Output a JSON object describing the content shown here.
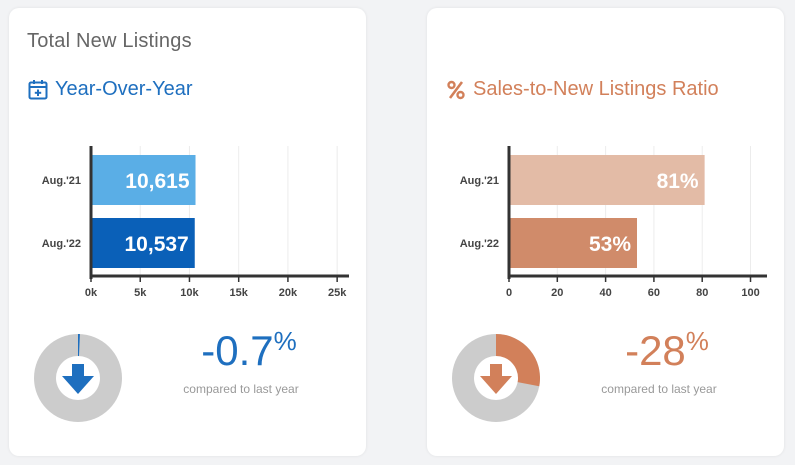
{
  "left_card": {
    "title": "Total New Listings",
    "subtitle": "Year-Over-Year",
    "subtitle_icon": "calendar-plus-icon",
    "color": "#1e6fbf",
    "change_value": "-0.7",
    "change_unit": "%",
    "compare_text": "compared to last year",
    "donut_fraction": 0.007,
    "donut_direction": "down"
  },
  "right_card": {
    "title": "",
    "subtitle": "Sales-to-New Listings Ratio",
    "subtitle_icon": "percent-icon",
    "color": "#d2805a",
    "change_value": "-28",
    "change_unit": "%",
    "compare_text": "compared to last year",
    "donut_fraction": 0.28,
    "donut_direction": "down"
  },
  "chart_data": [
    {
      "type": "bar",
      "orientation": "horizontal",
      "categories": [
        "Aug.'21",
        "Aug.'22"
      ],
      "values": [
        10615,
        10537
      ],
      "value_labels": [
        "10,615",
        "10,537"
      ],
      "colors": [
        "#5aaee6",
        "#0a60b8"
      ],
      "xlim": [
        0,
        26000
      ],
      "xticks": [
        0,
        5000,
        10000,
        15000,
        20000,
        25000
      ],
      "xtick_labels": [
        "0k",
        "5k",
        "10k",
        "15k",
        "20k",
        "25k"
      ],
      "grid": true
    },
    {
      "type": "bar",
      "orientation": "horizontal",
      "categories": [
        "Aug.'21",
        "Aug.'22"
      ],
      "values": [
        81,
        53
      ],
      "value_labels": [
        "81%",
        "53%"
      ],
      "colors": [
        "#e3bba6",
        "#d08b6a"
      ],
      "xlim": [
        0,
        106
      ],
      "xticks": [
        0,
        20,
        40,
        60,
        80,
        100
      ],
      "xtick_labels": [
        "0",
        "20",
        "40",
        "60",
        "80",
        "100"
      ],
      "grid": true
    }
  ]
}
